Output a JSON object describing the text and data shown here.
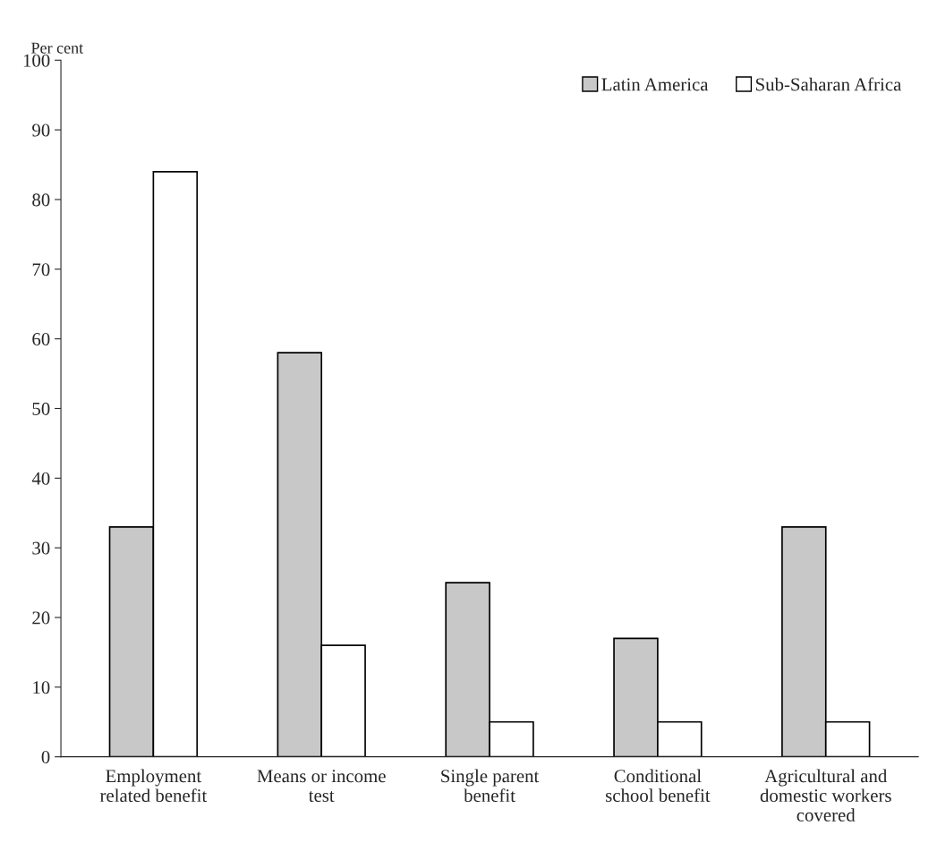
{
  "chart_data": {
    "type": "bar",
    "ylabel": "Per cent",
    "categories": [
      "Employment\nrelated benefit",
      "Means or income\ntest",
      "Single parent\nbenefit",
      "Conditional\nschool benefit",
      "Agricultural and\ndomestic workers\ncovered"
    ],
    "series": [
      {
        "name": "Latin America",
        "color": "#c8c8c8",
        "values": [
          33,
          58,
          25,
          17,
          33
        ]
      },
      {
        "name": "Sub-Saharan Africa",
        "color": "#ffffff",
        "values": [
          84,
          16,
          5,
          5,
          5
        ]
      }
    ],
    "ylim": [
      0,
      100
    ],
    "yticks": [
      0,
      10,
      20,
      30,
      40,
      50,
      60,
      70,
      80,
      90,
      100
    ],
    "grid": false,
    "legend": "top right"
  }
}
